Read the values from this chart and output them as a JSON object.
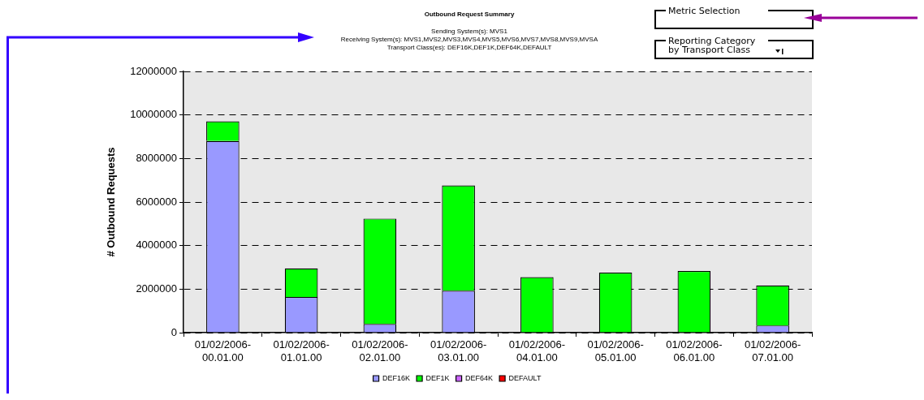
{
  "chart_data": {
    "type": "bar",
    "title": "Outbound Request Summary",
    "subtitle": "Sending System(s): MVS1\nReceiving System(s): MVS1,MVS2,MVS3,MVS4,MVS5,MVS6,MVS7,MVS8,MVS9,MVSA\nTransport Class(es): DEF16K,DEF1K,DEF64K,DEFAULT",
    "annotations": [
      "Metric Selection",
      "Reporting Category by Transport Class"
    ],
    "ylabel": "# Outbound Requests",
    "categories": [
      "01/02/2006-00.01.00",
      "01/02/2006-01.01.00",
      "01/02/2006-02.01.00",
      "01/02/2006-03.01.00",
      "01/02/2006-04.01.00",
      "01/02/2006-05.01.00",
      "01/02/2006-06.01.00",
      "01/02/2006-07.01.00"
    ],
    "stacked": true,
    "series": [
      {
        "name": "DEF16K",
        "color": "#9999ff",
        "values": [
          8800000,
          1640000,
          400000,
          1930000,
          0,
          null,
          0,
          330000
        ]
      },
      {
        "name": "DEF1K",
        "color": "#00ff00",
        "values": [
          910000,
          1310000,
          4840000,
          4830000,
          2550000,
          2760000,
          2830000,
          1840000
        ]
      },
      {
        "name": "DEF64K",
        "color": "#cc66ff",
        "values": [
          0,
          0,
          0,
          0,
          0,
          0,
          0,
          0
        ]
      },
      {
        "name": "DEFAULT",
        "color": "#ff0000",
        "values": [
          0,
          0,
          0,
          0,
          0,
          0,
          0,
          0
        ]
      }
    ],
    "ylim": [
      0,
      12000000
    ],
    "yticks": [
      0,
      2000000,
      4000000,
      6000000,
      8000000,
      10000000,
      12000000
    ],
    "grid": "y",
    "legend": "bottom"
  }
}
